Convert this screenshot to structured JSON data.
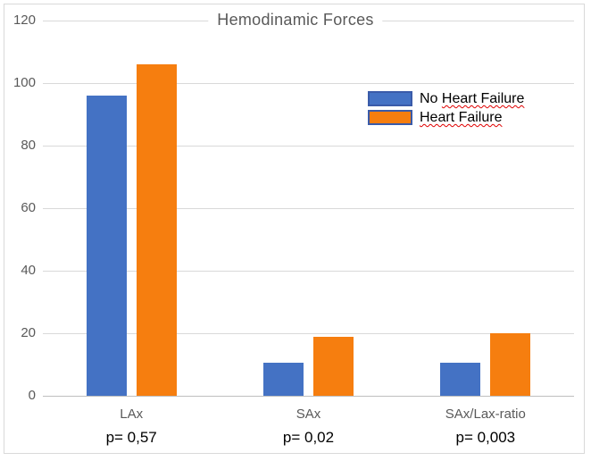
{
  "chart_data": {
    "type": "bar",
    "title": "Hemodinamic Forces",
    "categories": [
      "LAx",
      "SAx",
      "SAx/Lax-ratio"
    ],
    "series": [
      {
        "name": "No Heart Failure",
        "color": "#4472C4",
        "values": [
          96,
          10.5,
          10.5
        ]
      },
      {
        "name": "Heart Failure",
        "color": "#F67E0F",
        "values": [
          106,
          19,
          20
        ]
      }
    ],
    "p_values": [
      "p= 0,57",
      "p= 0,02",
      "p= 0,003"
    ],
    "xlabel": "",
    "ylabel": "",
    "ylim": [
      0,
      120
    ],
    "yticks": [
      0,
      20,
      40,
      60,
      80,
      100,
      120
    ],
    "grid": true,
    "legend_position": "upper-right",
    "legend": [
      {
        "plain": "No ",
        "misspelled": "Heart Failure"
      },
      {
        "plain": "",
        "misspelled": "Heart Failure"
      }
    ]
  },
  "colors": {
    "series_blue": "#4472C4",
    "series_orange": "#F67E0F",
    "legend_swatch_border": "#3A5BA9",
    "gridline": "#D9D9D9",
    "axis_line": "#BFBFBF",
    "frame_border": "#D9D9D9",
    "title_text": "#595959",
    "tick_text": "#595959",
    "p_value_text": "#000000",
    "spellcheck_squiggle": "#E00000"
  }
}
